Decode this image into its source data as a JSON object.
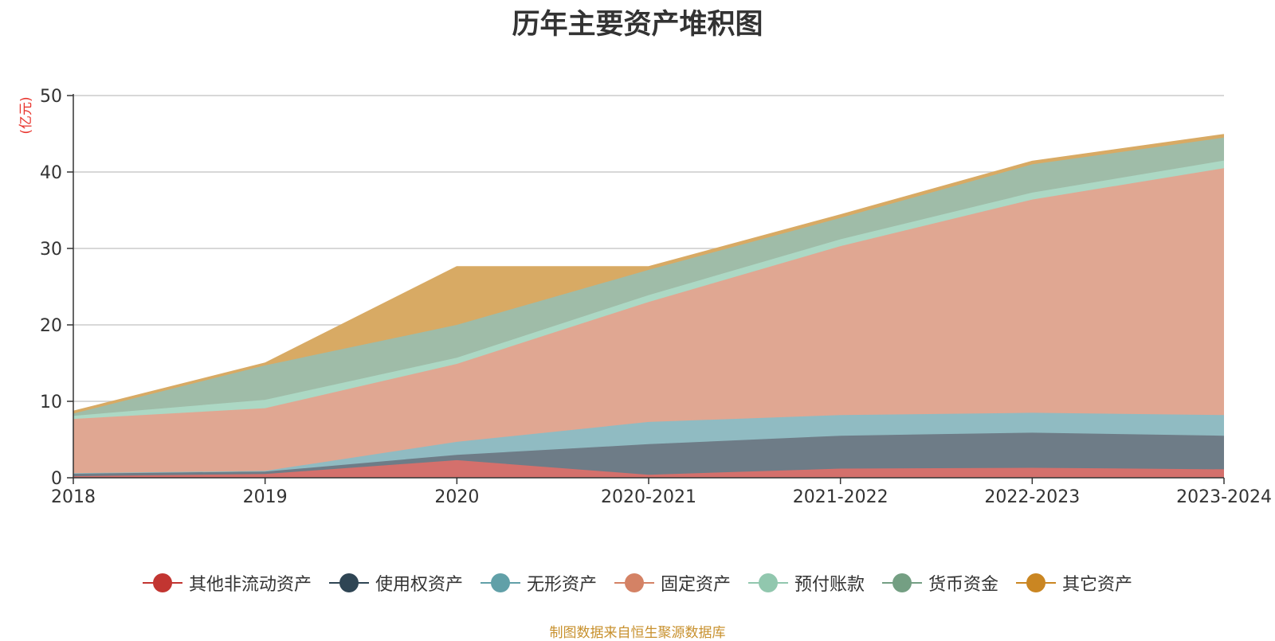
{
  "chart_data": {
    "type": "area",
    "stacked": true,
    "title": "历年主要资产堆积图",
    "unit_label": "(亿元)",
    "x": [
      "2018",
      "2019",
      "2020",
      "2020-2021",
      "2021-2022",
      "2022-2023",
      "2023-2024"
    ],
    "ylim": [
      0,
      50
    ],
    "yticks": [
      0,
      10,
      20,
      30,
      40,
      50
    ],
    "grid": true,
    "legend_position": "bottom",
    "series": [
      {
        "name": "其他非流动资产",
        "color": "#c23531",
        "fill": "#d4706c",
        "values": [
          0.2,
          0.5,
          2.3,
          0.4,
          1.2,
          1.3,
          1.1
        ]
      },
      {
        "name": "使用权资产",
        "color": "#2f4554",
        "fill": "#6e7c87",
        "values": [
          0.4,
          0.3,
          0.7,
          4.0,
          4.3,
          4.6,
          4.4
        ]
      },
      {
        "name": "无形资产",
        "color": "#61a0a8",
        "fill": "#90bbc2",
        "values": [
          0.0,
          0.1,
          1.7,
          2.9,
          2.7,
          2.6,
          2.7
        ]
      },
      {
        "name": "固定资产",
        "color": "#d48265",
        "fill": "#e0a792",
        "values": [
          7.1,
          8.2,
          10.2,
          15.7,
          22.1,
          27.9,
          32.3
        ]
      },
      {
        "name": "预付账款",
        "color": "#91c7ae",
        "fill": "#acd8c4",
        "values": [
          0.4,
          1.1,
          0.8,
          0.9,
          0.9,
          0.9,
          1.0
        ]
      },
      {
        "name": "货币资金",
        "color": "#749f83",
        "fill": "#9fbca8",
        "values": [
          0.3,
          4.5,
          4.3,
          3.3,
          2.8,
          3.7,
          3.0
        ]
      },
      {
        "name": "其它资产",
        "color": "#ca8622",
        "fill": "#d8aa64",
        "values": [
          0.3,
          0.3,
          7.6,
          0.4,
          0.4,
          0.4,
          0.4
        ]
      }
    ]
  },
  "source_note": "制图数据来自恒生聚源数据库"
}
